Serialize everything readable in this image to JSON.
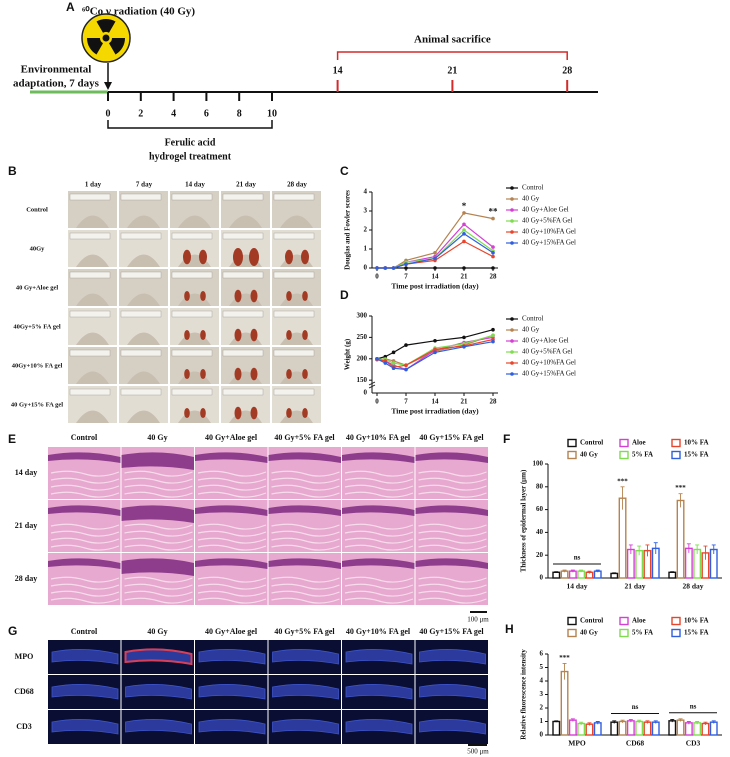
{
  "panel_labels": [
    "A",
    "B",
    "C",
    "D",
    "E",
    "F",
    "G",
    "H"
  ],
  "timeline": {
    "radiation": "⁶⁰Co γ radiation (40 Gy)",
    "adaptation": [
      "Environmental",
      "adaptation, 7 days"
    ],
    "sacrifice": "Animal sacrifice",
    "treatment": [
      "Ferulic acid",
      "hydrogel treatment"
    ],
    "treatment_days": [
      0,
      2,
      4,
      6,
      8,
      10
    ],
    "sacrifice_days": [
      14,
      21,
      28
    ]
  },
  "photo_grid": {
    "columns": [
      "1 day",
      "7 day",
      "14 day",
      "21 day",
      "28 day"
    ],
    "rows": [
      "Control",
      "40Gy",
      "40 Gy+Aloe gel",
      "40Gy+5% FA  gel",
      "40Gy+10% FA  gel",
      "40 Gy+15% FA  gel"
    ]
  },
  "he_grid": {
    "columns": [
      "Control",
      "40 Gy",
      "40 Gy+Aloe gel",
      "40 Gy+5% FA  gel",
      "40 Gy+10% FA  gel",
      "40 Gy+15% FA  gel"
    ],
    "rows": [
      "14 day",
      "21 day",
      "28 day"
    ],
    "scale_bar": "100 μm"
  },
  "if_grid": {
    "columns": [
      "Control",
      "40 Gy",
      "40 Gy+Aloe gel",
      "40 Gy+5% FA gel",
      "40 Gy+10% FA gel",
      "40 Gy+15% FA gel"
    ],
    "rows": [
      "MPO",
      "CD68",
      "CD3"
    ],
    "scale_bar": "500 μm"
  },
  "chart_data": [
    {
      "type": "line",
      "xlabel": "Time post irradiation (day)",
      "ylabel": "Douglas and Fowler scores",
      "x": [
        0,
        2,
        4,
        7,
        14,
        21,
        28
      ],
      "xlim": [
        0,
        28
      ],
      "xticks": [
        0,
        7,
        14,
        21,
        28
      ],
      "ylim": [
        0,
        4
      ],
      "yticks": [
        0,
        1,
        2,
        3,
        4
      ],
      "series": [
        {
          "name": "Control",
          "color": "#111111",
          "values": [
            0,
            0,
            0,
            0,
            0,
            0,
            0
          ]
        },
        {
          "name": "40 Gy",
          "color": "#b5834f",
          "values": [
            0,
            0,
            0,
            0.4,
            0.8,
            2.9,
            2.6
          ]
        },
        {
          "name": "40 Gy+Aloe Gel",
          "color": "#d63fd6",
          "values": [
            0,
            0,
            0,
            0.3,
            0.6,
            2.3,
            1.1
          ]
        },
        {
          "name": "40 Gy+5%FA Gel",
          "color": "#7fdc4f",
          "values": [
            0,
            0,
            0,
            0.3,
            0.5,
            2.0,
            0.9
          ]
        },
        {
          "name": "40 Gy+10%FA Gel",
          "color": "#e8452c",
          "values": [
            0,
            0,
            0,
            0.2,
            0.4,
            1.4,
            0.6
          ]
        },
        {
          "name": "40 Gy+15%FA Gel",
          "color": "#2f5fe0",
          "values": [
            0,
            0,
            0,
            0.2,
            0.5,
            1.8,
            0.8
          ]
        }
      ],
      "annotations": [
        {
          "text": "*",
          "x": 21
        },
        {
          "text": "**",
          "x": 28
        }
      ]
    },
    {
      "type": "line",
      "xlabel": "Time post irradiation (day)",
      "ylabel": "Weight (g)",
      "x": [
        0,
        2,
        4,
        7,
        14,
        21,
        28
      ],
      "xlim": [
        0,
        28
      ],
      "xticks": [
        0,
        7,
        14,
        21,
        28
      ],
      "ylim": [
        120,
        300
      ],
      "yticks": [
        150,
        200,
        250,
        300
      ],
      "y_break_label": "0",
      "series": [
        {
          "name": "Control",
          "color": "#111111",
          "values": [
            200,
            205,
            215,
            232,
            242,
            250,
            268
          ]
        },
        {
          "name": "40 Gy",
          "color": "#b5834f",
          "values": [
            198,
            200,
            195,
            185,
            218,
            232,
            255
          ]
        },
        {
          "name": "40 Gy+Aloe Gel",
          "color": "#d63fd6",
          "values": [
            200,
            195,
            185,
            175,
            220,
            238,
            250
          ]
        },
        {
          "name": "40 Gy+5%FA Gel",
          "color": "#7fdc4f",
          "values": [
            200,
            198,
            190,
            185,
            225,
            235,
            255
          ]
        },
        {
          "name": "40 Gy+10%FA Gel",
          "color": "#e8452c",
          "values": [
            198,
            195,
            180,
            185,
            222,
            230,
            245
          ]
        },
        {
          "name": "40 Gy+15%FA Gel",
          "color": "#2f5fe0",
          "values": [
            200,
            190,
            178,
            175,
            215,
            228,
            240
          ]
        }
      ],
      "annotations": []
    },
    {
      "type": "bar",
      "ylabel": "Thickness of epidermal layer (μm)",
      "categories": [
        "14 day",
        "21 day",
        "28 day"
      ],
      "ylim": [
        0,
        100
      ],
      "yticks": [
        0,
        20,
        40,
        60,
        80,
        100
      ],
      "series": [
        {
          "name": "Control",
          "color": "#111111",
          "values": [
            5,
            4,
            5
          ],
          "errors": [
            0.5,
            0.5,
            0.5
          ]
        },
        {
          "name": "40 Gy",
          "color": "#b5834f",
          "values": [
            6,
            70,
            68
          ],
          "errors": [
            1,
            10,
            6
          ]
        },
        {
          "name": "Aloe",
          "color": "#d63fd6",
          "values": [
            6,
            25,
            26
          ],
          "errors": [
            1,
            4,
            4
          ]
        },
        {
          "name": "5% FA",
          "color": "#7fdc4f",
          "values": [
            6,
            24,
            25
          ],
          "errors": [
            1,
            4,
            4
          ]
        },
        {
          "name": "10% FA",
          "color": "#e8452c",
          "values": [
            5,
            24,
            22
          ],
          "errors": [
            1,
            5,
            6
          ]
        },
        {
          "name": "15% FA",
          "color": "#2f5fe0",
          "values": [
            6,
            26,
            25
          ],
          "errors": [
            1,
            5,
            4
          ]
        }
      ],
      "annotations": [
        "ns",
        "***",
        "***"
      ]
    },
    {
      "type": "bar",
      "ylabel": "Relative fluorescence intensity",
      "categories": [
        "MPO",
        "CD68",
        "CD3"
      ],
      "ylim": [
        0,
        6
      ],
      "yticks": [
        0,
        1,
        2,
        3,
        4,
        5,
        6
      ],
      "series": [
        {
          "name": "Control",
          "color": "#111111",
          "values": [
            1.0,
            0.95,
            1.05
          ],
          "errors": [
            0.05,
            0.1,
            0.1
          ]
        },
        {
          "name": "40 Gy",
          "color": "#b5834f",
          "values": [
            4.7,
            1.0,
            1.1
          ],
          "errors": [
            0.6,
            0.1,
            0.1
          ]
        },
        {
          "name": "Aloe",
          "color": "#d63fd6",
          "values": [
            1.1,
            1.05,
            0.9
          ],
          "errors": [
            0.1,
            0.1,
            0.1
          ]
        },
        {
          "name": "5% FA",
          "color": "#7fdc4f",
          "values": [
            0.85,
            1.0,
            0.9
          ],
          "errors": [
            0.1,
            0.1,
            0.1
          ]
        },
        {
          "name": "10% FA",
          "color": "#e8452c",
          "values": [
            0.8,
            0.95,
            0.85
          ],
          "errors": [
            0.1,
            0.1,
            0.1
          ]
        },
        {
          "name": "15% FA",
          "color": "#2f5fe0",
          "values": [
            0.9,
            0.95,
            0.95
          ],
          "errors": [
            0.1,
            0.1,
            0.1
          ]
        }
      ],
      "annotations": [
        "***",
        "ns",
        "ns"
      ]
    }
  ]
}
